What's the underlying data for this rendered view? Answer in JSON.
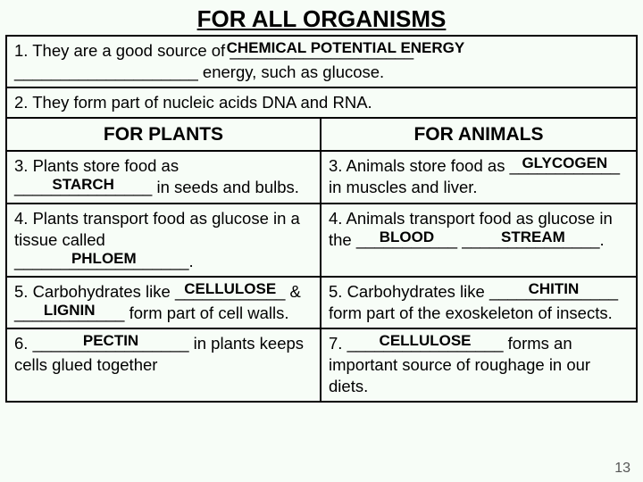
{
  "title": "FOR ALL ORGANISMS",
  "pageNumber": "13",
  "item1_a": "1. They are a good source of ",
  "item1_blank1": "____________________",
  "item1_label1": "CHEMICAL POTENTIAL ENERGY",
  "item1_b": "",
  "item1_c_blank": "____________________",
  "item1_c_tail": " energy, such as glucose.",
  "item2": "2. They form part of nucleic acids DNA and RNA.",
  "head_plants": "FOR PLANTS",
  "head_animals": "FOR ANIMALS",
  "p3_a": "3. Plants store food as ",
  "p3_blank": "_______________",
  "p3_label": "STARCH",
  "p3_b": " in seeds and bulbs.",
  "a3_a": "3. Animals store food as ",
  "a3_blank": "____________",
  "a3_label": "GLYCOGEN",
  "a3_b": "in muscles and liver.",
  "p4_a": "4.  Plants transport food as glucose in a tissue called ",
  "p4_blank": "___________________.",
  "p4_label": "PHLOEM",
  "a4_a": "4.  Animals transport food as glucose in the ",
  "a4_blank1": "___________",
  "a4_label1": "BLOOD",
  "a4_b": " ",
  "a4_blank2": "_______________.",
  "a4_label2": "STREAM",
  "p5_a": "5. Carbohydrates like ",
  "p5_blank1": "____________",
  "p5_label1": "CELLULOSE",
  "p5_amp": " & ",
  "p5_blank2": "____________",
  "p5_label2": "LIGNIN",
  "p5_b": " form part of cell walls.",
  "a5_a": "5. Carbohydrates like ",
  "a5_blank": "______________",
  "a5_label": "CHITIN",
  "a5_b": " form part of the exoskeleton of insects.",
  "p6_a": "6. ",
  "p6_blank": "_________________",
  "p6_label": "PECTIN",
  "p6_b": " in plants keeps cells glued together",
  "a7_a": "7. ",
  "a7_blank": "_________________",
  "a7_label": "CELLULOSE",
  "a7_b": " forms an important source of roughage in our diets."
}
